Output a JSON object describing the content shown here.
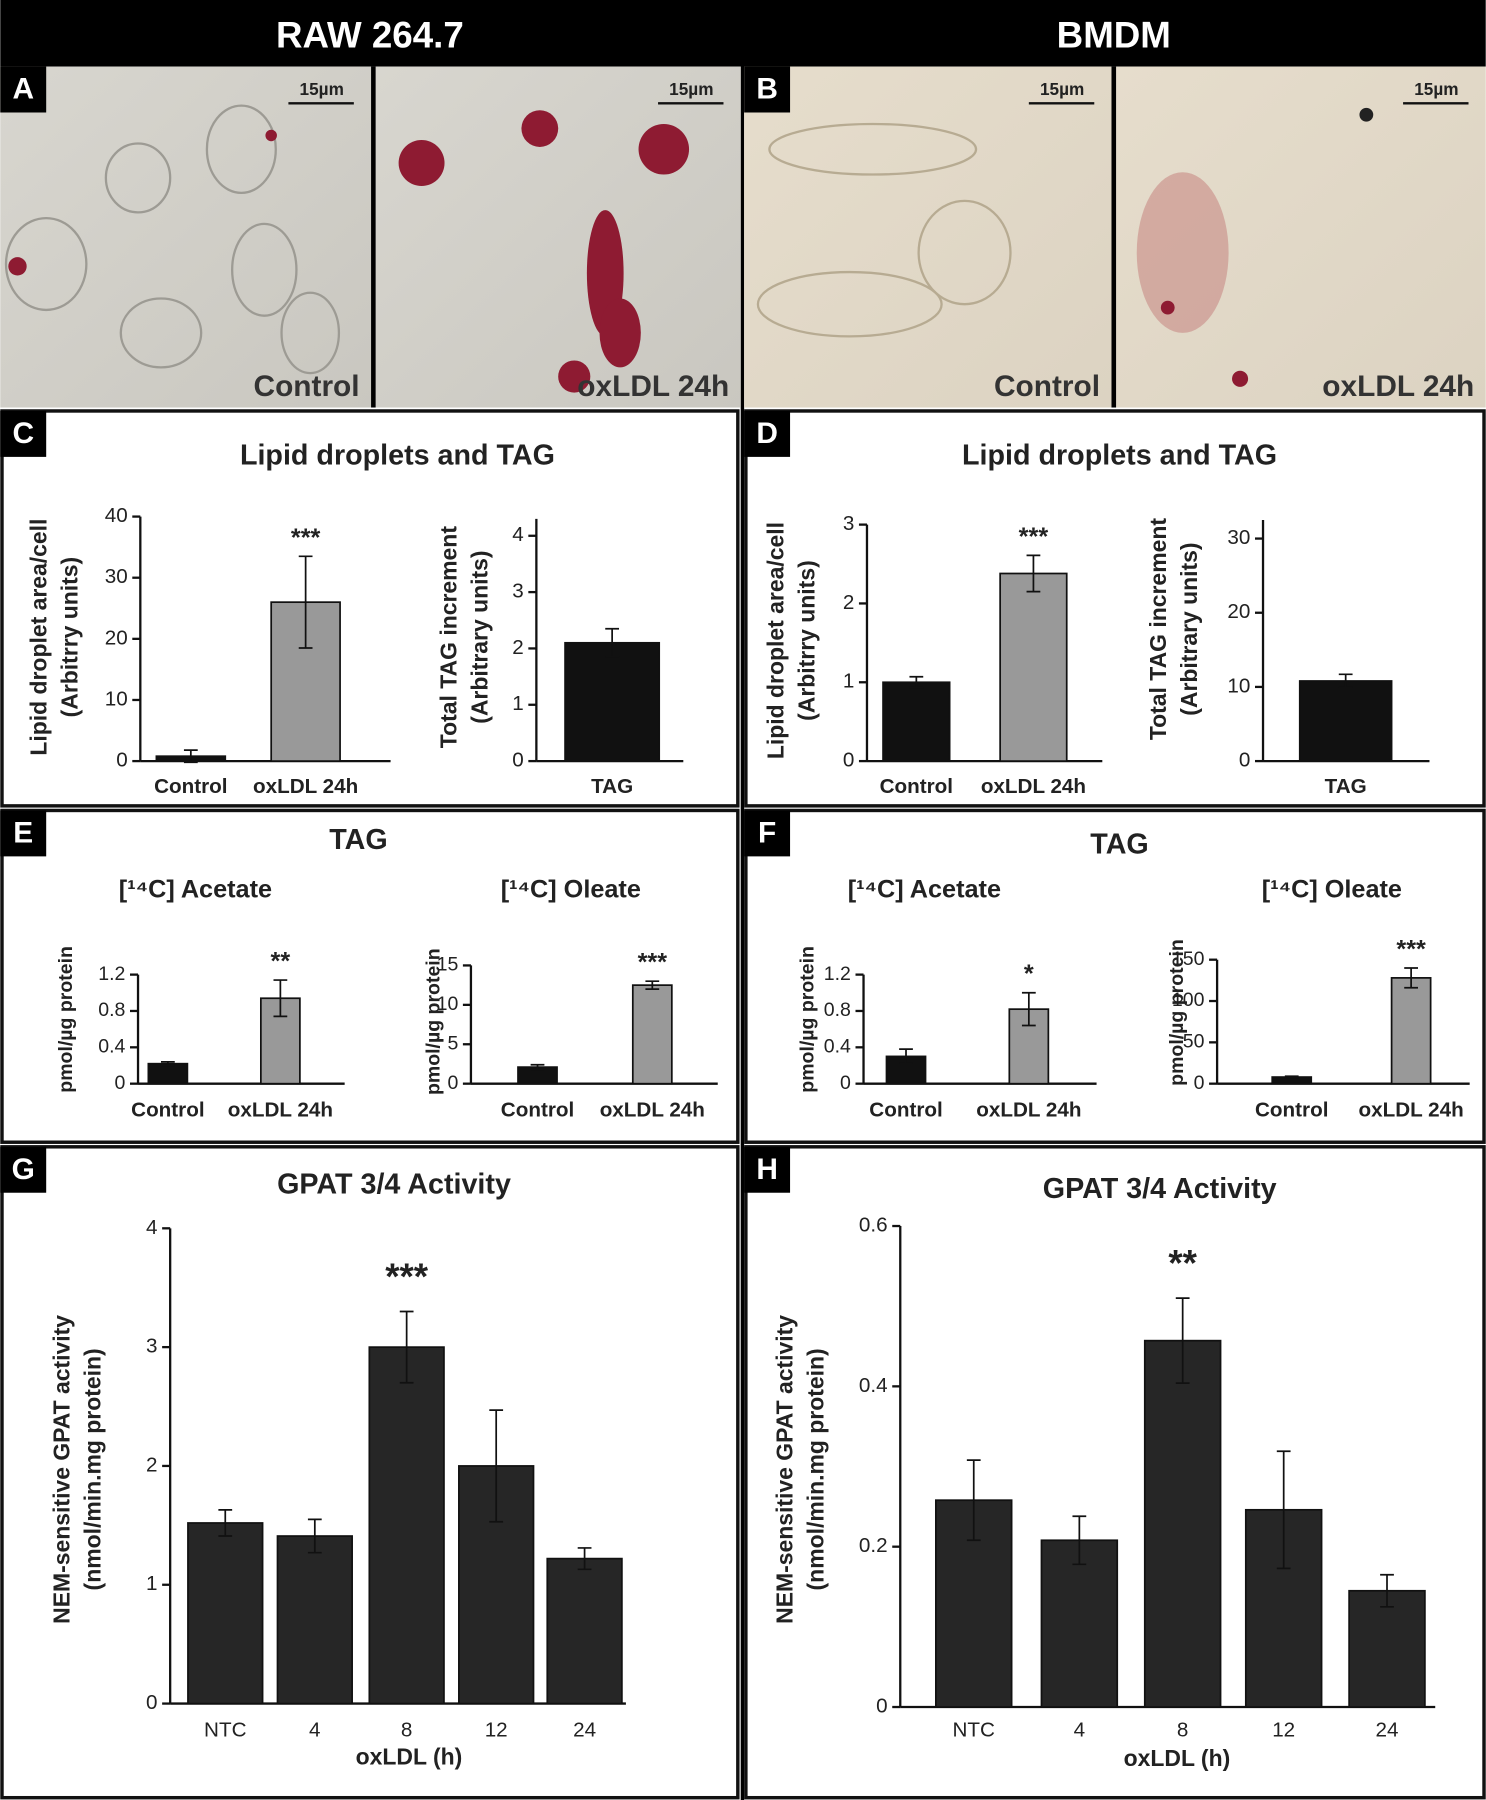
{
  "headers": [
    "RAW 264.7",
    "BMDM"
  ],
  "panel_letters": [
    "A",
    "B",
    "C",
    "D",
    "E",
    "F",
    "G",
    "H"
  ],
  "micrographs": [
    {
      "label": "Control",
      "scale": "15µm"
    },
    {
      "label": "oxLDL 24h",
      "scale": "15µm"
    },
    {
      "label": "Control",
      "scale": "15µm"
    },
    {
      "label": "oxLDL 24h",
      "scale": "15µm"
    }
  ],
  "panel_titles": [
    "Lipid droplets and TAG",
    "Lipid droplets and TAG",
    "TAG",
    "TAG"
  ],
  "chart_data": [
    {
      "type": "bar",
      "categories": [
        "Control",
        "oxLDL 24h"
      ],
      "values": [
        0.8,
        26
      ],
      "errors": [
        1,
        7.5
      ],
      "colors": [
        "#111111",
        "#999999"
      ],
      "ylim": [
        0,
        40
      ],
      "yticks": [
        0,
        10,
        20,
        30,
        40
      ],
      "ylabel": [
        "Lipid droplet area/cell",
        "(Arbitrry units)"
      ],
      "annotations": [
        {
          "category": "oxLDL 24h",
          "text": "***"
        }
      ]
    },
    {
      "type": "bar",
      "categories": [
        "TAG"
      ],
      "values": [
        2.1
      ],
      "errors": [
        0.25
      ],
      "colors": [
        "#111111"
      ],
      "ylim": [
        0,
        4.3
      ],
      "yticks": [
        0,
        1,
        2,
        3,
        4
      ],
      "ylabel": [
        "Total TAG increment",
        "(Arbitrary units)"
      ]
    },
    {
      "type": "bar",
      "categories": [
        "Control",
        "oxLDL 24h"
      ],
      "values": [
        1.0,
        2.38
      ],
      "errors": [
        0.07,
        0.23
      ],
      "colors": [
        "#111111",
        "#999999"
      ],
      "ylim": [
        0,
        3
      ],
      "yticks": [
        0,
        1,
        2,
        3
      ],
      "ylabel": [
        "Lipid droplet area/cell",
        "(Arbitrry units)"
      ],
      "annotations": [
        {
          "category": "oxLDL 24h",
          "text": "***"
        }
      ]
    },
    {
      "type": "bar",
      "categories": [
        "TAG"
      ],
      "values": [
        10.8
      ],
      "errors": [
        0.9
      ],
      "colors": [
        "#111111"
      ],
      "ylim": [
        0,
        32.5
      ],
      "yticks": [
        0,
        10,
        20,
        30
      ],
      "ylabel": [
        "Total TAG increment",
        "(Arbitrary units)"
      ]
    },
    {
      "type": "bar",
      "title": "[¹⁴C] Acetate",
      "categories": [
        "Control",
        "oxLDL 24h"
      ],
      "values": [
        0.22,
        0.94
      ],
      "errors": [
        0.02,
        0.2
      ],
      "colors": [
        "#111111",
        "#999999"
      ],
      "ylim": [
        0,
        1.2
      ],
      "yticks": [
        0,
        0.4,
        0.8,
        1.2
      ],
      "ylabel": [
        "pmol/µg protein"
      ],
      "annotations": [
        {
          "category": "oxLDL 24h",
          "text": "**"
        }
      ]
    },
    {
      "type": "bar",
      "title": "[¹⁴C] Oleate",
      "categories": [
        "Control",
        "oxLDL 24h"
      ],
      "values": [
        2.1,
        12.5
      ],
      "errors": [
        0.3,
        0.5
      ],
      "colors": [
        "#111111",
        "#999999"
      ],
      "ylim": [
        0,
        15
      ],
      "yticks": [
        0,
        5,
        10,
        15
      ],
      "ylabel": [
        "pmol/µg protein"
      ],
      "annotations": [
        {
          "category": "oxLDL 24h",
          "text": "***"
        }
      ]
    },
    {
      "type": "bar",
      "title": "[¹⁴C] Acetate",
      "categories": [
        "Control",
        "oxLDL 24h"
      ],
      "values": [
        0.3,
        0.82
      ],
      "errors": [
        0.08,
        0.18
      ],
      "colors": [
        "#111111",
        "#999999"
      ],
      "ylim": [
        0,
        1.2
      ],
      "yticks": [
        0,
        0.4,
        0.8,
        1.2
      ],
      "ylabel": [
        "pmol/µg protein"
      ],
      "annotations": [
        {
          "category": "oxLDL 24h",
          "text": "*"
        }
      ]
    },
    {
      "type": "bar",
      "title": "[¹⁴C] Oleate",
      "categories": [
        "Control",
        "oxLDL 24h"
      ],
      "values": [
        8,
        128
      ],
      "errors": [
        1,
        12
      ],
      "colors": [
        "#111111",
        "#999999"
      ],
      "ylim": [
        0,
        150
      ],
      "yticks": [
        0,
        50,
        100,
        150
      ],
      "ylabel": [
        "pmol/µg protein"
      ],
      "annotations": [
        {
          "category": "oxLDL 24h",
          "text": "***"
        }
      ]
    },
    {
      "type": "bar",
      "title": "GPAT 3/4 Activity",
      "categories": [
        "NTC",
        "4",
        "8",
        "12",
        "24"
      ],
      "values": [
        1.52,
        1.41,
        3.0,
        2.0,
        1.22
      ],
      "errors": [
        0.11,
        0.14,
        0.3,
        0.47,
        0.09
      ],
      "colors": [
        "#262626",
        "#262626",
        "#262626",
        "#262626",
        "#262626"
      ],
      "ylim": [
        0,
        4
      ],
      "yticks": [
        0,
        1,
        2,
        3,
        4
      ],
      "xlabel": "oxLDL (h)",
      "ylabel": [
        "NEM-sensitive GPAT activity",
        "(nmol/min.mg protein)"
      ],
      "annotations": [
        {
          "category": "8",
          "text": "***"
        }
      ]
    },
    {
      "type": "bar",
      "title": "GPAT 3/4 Activity",
      "categories": [
        "NTC",
        "4",
        "8",
        "12",
        "24"
      ],
      "values": [
        0.258,
        0.208,
        0.457,
        0.246,
        0.145
      ],
      "errors": [
        0.05,
        0.03,
        0.053,
        0.073,
        0.02
      ],
      "colors": [
        "#262626",
        "#262626",
        "#262626",
        "#262626",
        "#262626"
      ],
      "ylim": [
        0,
        0.6
      ],
      "yticks": [
        0,
        0.2,
        0.4,
        0.6
      ],
      "xlabel": "oxLDL (h)",
      "ylabel": [
        "NEM-sensitive GPAT activity",
        "(nmol/min.mg protein)"
      ],
      "annotations": [
        {
          "category": "8",
          "text": "**"
        }
      ]
    }
  ]
}
